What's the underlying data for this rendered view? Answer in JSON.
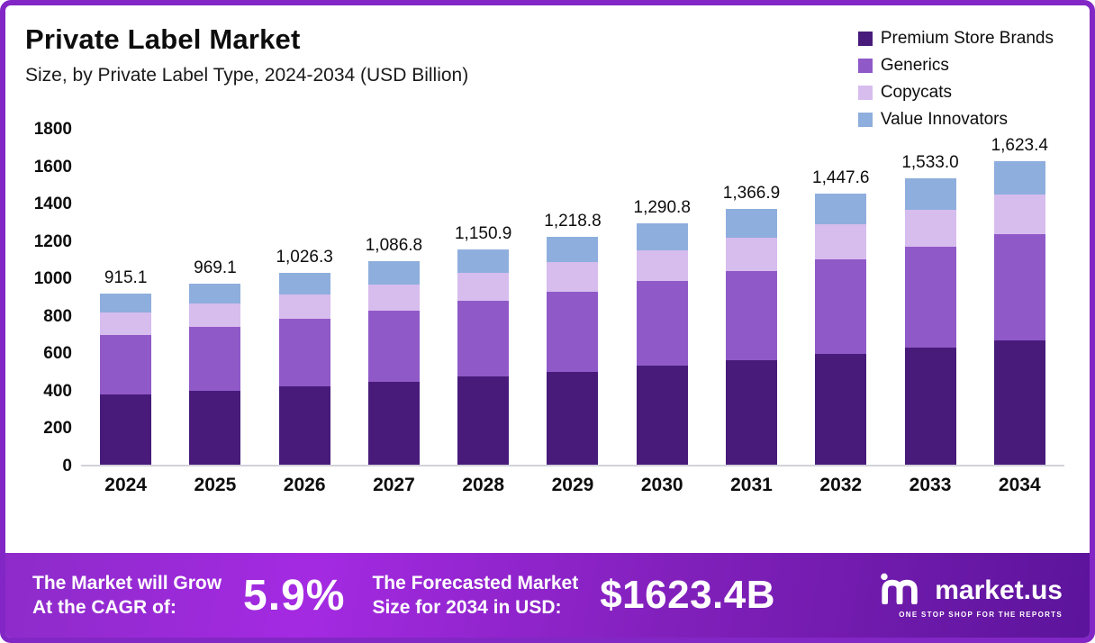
{
  "chart_data": {
    "type": "bar",
    "stacked": true,
    "title": "Private Label Market",
    "subtitle": "Size, by Private Label Type, 2024-2034 (USD Billion)",
    "categories": [
      "2024",
      "2025",
      "2026",
      "2027",
      "2028",
      "2029",
      "2030",
      "2031",
      "2032",
      "2033",
      "2034"
    ],
    "series": [
      {
        "name": "Premium Store Brands",
        "color": "#481b7a",
        "values": [
          375.0,
          396.0,
          420.0,
          444.0,
          471.0,
          498.0,
          528.0,
          559.0,
          592.0,
          627.0,
          664.0
        ]
      },
      {
        "name": "Generics",
        "color": "#9059c8",
        "values": [
          320.0,
          339.0,
          359.0,
          380.0,
          403.0,
          427.0,
          452.0,
          478.0,
          507.0,
          537.0,
          568.0
        ]
      },
      {
        "name": "Copycats",
        "color": "#d7bcee",
        "values": [
          119.0,
          126.0,
          133.0,
          141.0,
          149.0,
          158.0,
          167.0,
          177.0,
          188.0,
          199.0,
          211.0
        ]
      },
      {
        "name": "Value Innovators",
        "color": "#8eaedd",
        "values": [
          101.1,
          108.1,
          114.3,
          121.8,
          127.9,
          135.8,
          143.8,
          152.9,
          160.6,
          170.0,
          180.4
        ]
      }
    ],
    "totals": [
      915.1,
      969.1,
      1026.3,
      1086.8,
      1150.9,
      1218.8,
      1290.8,
      1366.9,
      1447.6,
      1533.0,
      1623.4
    ],
    "total_labels": [
      "915.1",
      "969.1",
      "1,026.3",
      "1,086.8",
      "1,150.9",
      "1,218.8",
      "1,290.8",
      "1,366.9",
      "1,447.6",
      "1,533.0",
      "1,623.4"
    ],
    "ylim": [
      0,
      1800
    ],
    "yticks": [
      0,
      200,
      400,
      600,
      800,
      1000,
      1200,
      1400,
      1600,
      1800
    ],
    "grid": false,
    "legend_position": "top-right"
  },
  "banner": {
    "cagr_label_line1": "The Market will Grow",
    "cagr_label_line2": "At the CAGR of:",
    "cagr_value": "5.9%",
    "forecast_label_line1": "The Forecasted Market",
    "forecast_label_line2": "Size for 2034 in USD:",
    "forecast_value": "$1623.4B",
    "brand": "market.us",
    "brand_tagline": "ONE STOP SHOP FOR THE REPORTS"
  },
  "colors": {
    "frame_border": "#8227c5",
    "banner_gradient_start": "#a42ae2",
    "banner_gradient_end": "#5c149b",
    "axis_line": "#d2d2da"
  }
}
